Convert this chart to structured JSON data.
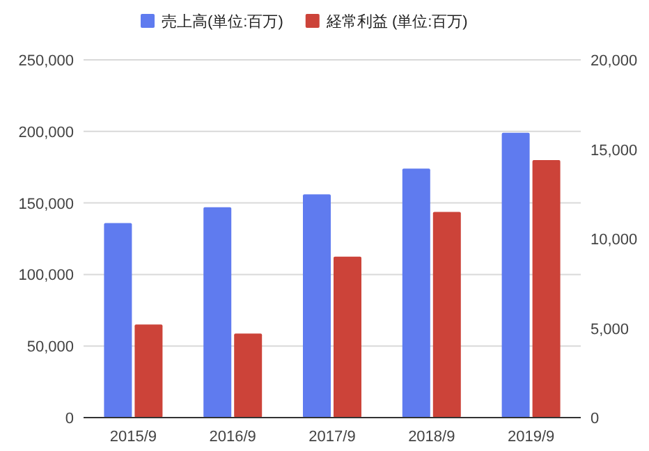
{
  "chart_data": {
    "type": "bar",
    "categories": [
      "2015/9",
      "2016/9",
      "2017/9",
      "2018/9",
      "2019/9"
    ],
    "series": [
      {
        "name": "売上高(単位:百万)",
        "color": "#5f7bef",
        "values": [
          136000,
          147000,
          156000,
          174000,
          199000
        ]
      },
      {
        "name": "経常利益 (単位:百万)",
        "color": "#cc4339",
        "axis": "y2",
        "values": [
          5200,
          4700,
          9000,
          11500,
          14400
        ]
      }
    ],
    "ylim": [
      0,
      250000
    ],
    "yticks": [
      {
        "value": 0,
        "label": "0"
      },
      {
        "value": 50000,
        "label": "50,000"
      },
      {
        "value": 100000,
        "label": "100,000"
      },
      {
        "value": 150000,
        "label": "150,000"
      },
      {
        "value": 200000,
        "label": "200,000"
      },
      {
        "value": 250000,
        "label": "250,000"
      }
    ],
    "y2lim": [
      0,
      20000
    ],
    "y2ticks": [
      {
        "value": 0,
        "label": "0"
      },
      {
        "value": 5000,
        "label": "5,000"
      },
      {
        "value": 10000,
        "label": "10,000"
      },
      {
        "value": 15000,
        "label": "15,000"
      },
      {
        "value": 20000,
        "label": "20,000"
      }
    ],
    "grid": "y",
    "legend": "top"
  }
}
